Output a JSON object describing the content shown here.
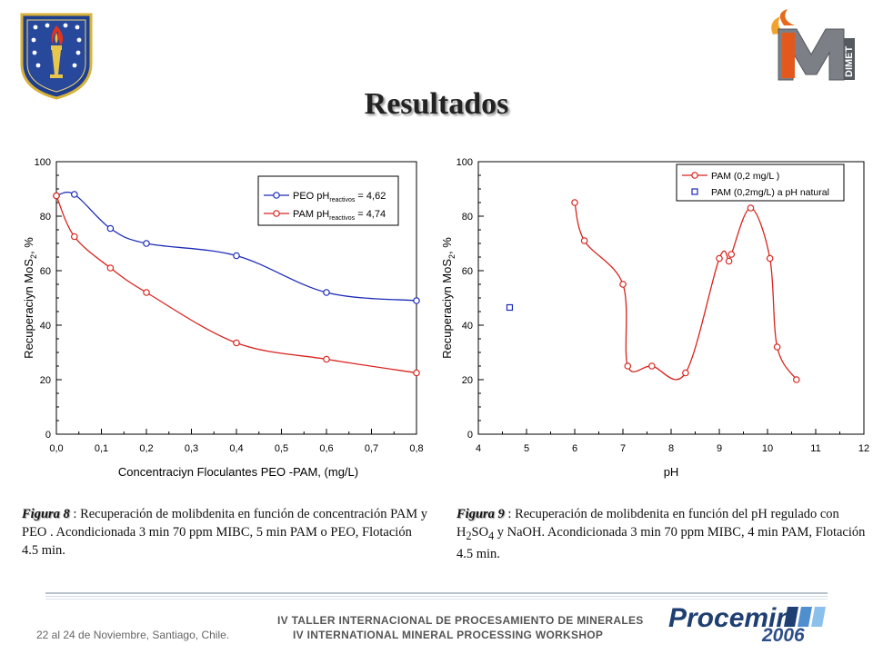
{
  "title": "Resultados",
  "footer": {
    "event_es": "IV TALLER INTERNACIONAL DE PROCESAMIENTO DE MINERALES",
    "event_en": "IV INTERNATIONAL MINERAL PROCESSING WORKSHOP",
    "date_place": "22 al 24 de Noviembre, Santiago, Chile.",
    "brand": "Procemin",
    "year": "2006"
  },
  "logos": {
    "right_text": "DIMET"
  },
  "captions": {
    "fig8": {
      "label": "Figura 8",
      "text": " :  Recuperación de molibdenita en función de concentración PAM  y PEO .  Acondicionada  3 min  70 ppm  MIBC, 5 min PAM o PEO, Flotación 4.5 min."
    },
    "fig9": {
      "label": "Figura 9",
      "text_1": " :  Recuperación de molibdenita en función del pH regulado con H",
      "sub_2": "2",
      "text_2": "SO",
      "sub_4": "4",
      "text_3": " y NaOH.    Acondicionada  3 min  70 ppm  MIBC, 4 min PAM, Flotación 4.5 min."
    }
  },
  "chart_data": [
    {
      "type": "line",
      "xlabel": "Concentraciyn Floculantes PEO -PAM, (mg/L)",
      "ylabel": "Recuperaciyn MoS2, %",
      "xlim": [
        0,
        0.8
      ],
      "ylim": [
        0,
        100
      ],
      "xticks": [
        0,
        0.1,
        0.2,
        0.3,
        0.4,
        0.5,
        0.6,
        0.7,
        0.8
      ],
      "xtick_labels": [
        "0,0",
        "0,1",
        "0,2",
        "0,3",
        "0,4",
        "0,5",
        "0,6",
        "0,7",
        "0,8"
      ],
      "yticks": [
        0,
        20,
        40,
        60,
        80,
        100
      ],
      "ytick_labels": [
        "0",
        "20",
        "40",
        "60",
        "80",
        "100"
      ],
      "grid": false,
      "legend_position": "top-right",
      "series": [
        {
          "name": "PEO pH reactivos = 4,62",
          "legend_main": "PEO pH",
          "legend_sub": "reactivos",
          "legend_tail": " = 4,62",
          "color": "#1c2ab8",
          "x": [
            0.0,
            0.04,
            0.12,
            0.2,
            0.4,
            0.6,
            0.8
          ],
          "y": [
            87.5,
            88,
            75.5,
            70,
            65.5,
            52,
            49
          ]
        },
        {
          "name": "PAM pH reactivos = 4,74",
          "legend_main": "PAM pH",
          "legend_sub": "reactivos",
          "legend_tail": " = 4,74",
          "color": "#d8241e",
          "x": [
            0.0,
            0.04,
            0.12,
            0.2,
            0.4,
            0.6,
            0.8
          ],
          "y": [
            87.5,
            72.5,
            61,
            52,
            33.5,
            27.5,
            22.5
          ]
        }
      ]
    },
    {
      "type": "scatter",
      "xlabel": "pH",
      "ylabel": "Recuperaciyn MoS2, %",
      "xlim": [
        4,
        12
      ],
      "ylim": [
        0,
        100
      ],
      "xticks": [
        4,
        5,
        6,
        7,
        8,
        9,
        10,
        11,
        12
      ],
      "xtick_labels": [
        "4",
        "5",
        "6",
        "7",
        "8",
        "9",
        "10",
        "11",
        "12"
      ],
      "yticks": [
        0,
        20,
        40,
        60,
        80,
        100
      ],
      "ytick_labels": [
        "0",
        "20",
        "40",
        "60",
        "80",
        "100"
      ],
      "grid": false,
      "legend_position": "top-right",
      "series": [
        {
          "name": "PAM (0,2 mg/L )",
          "marker": "circle",
          "connected": true,
          "color": "#d8241e",
          "x": [
            6.0,
            6.2,
            7.0,
            7.1,
            7.6,
            8.3,
            9.0,
            9.2,
            9.25,
            9.65,
            10.05,
            10.2,
            10.6
          ],
          "y": [
            85,
            71,
            55,
            25,
            25,
            22.5,
            64.5,
            63.5,
            66,
            83,
            64.5,
            32,
            20
          ]
        },
        {
          "name": "PAM (0,2mg/L) a pH natural",
          "marker": "square",
          "connected": false,
          "color": "#1c2ab8",
          "x": [
            4.65
          ],
          "y": [
            46.5
          ]
        }
      ]
    }
  ]
}
